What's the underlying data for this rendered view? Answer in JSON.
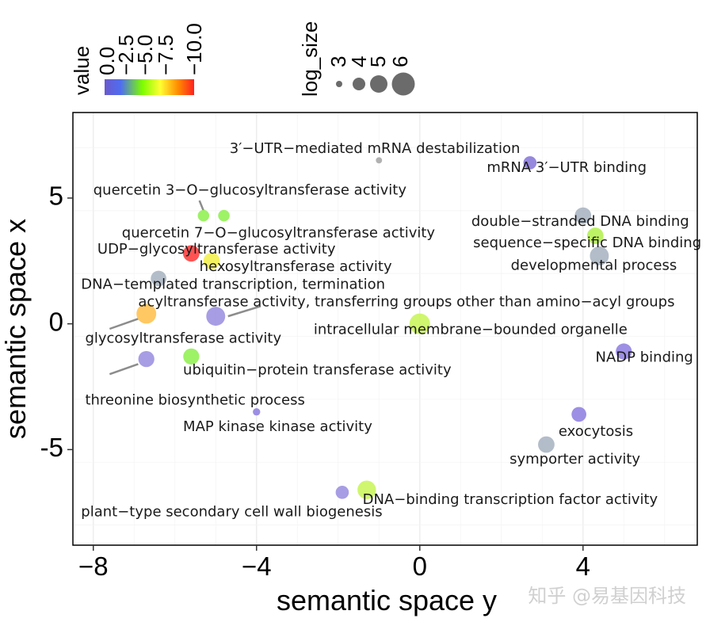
{
  "chart_data": {
    "type": "scatter",
    "xlabel": "semantic space y",
    "ylabel": "semantic space x",
    "xlim": [
      -8.5,
      6.8
    ],
    "ylim": [
      -8.8,
      8.4
    ],
    "x_ticks": [
      -8,
      -4,
      0,
      4
    ],
    "x_tick_labels": [
      "−8",
      "−4",
      "0",
      "4"
    ],
    "y_ticks": [
      -5,
      0,
      5
    ],
    "y_tick_labels": [
      "-5",
      "0",
      "5"
    ],
    "grid": true,
    "color_legend": {
      "title": "value",
      "labels": [
        "0.0",
        "−2.5",
        "−5.0",
        "−7.5",
        "−10.0"
      ],
      "colors": [
        "#6a5acd",
        "#4169e1",
        "#7cfc00",
        "#ffff33",
        "#ff8c00",
        "#ff2020"
      ]
    },
    "size_legend": {
      "title": "log_size",
      "labels": [
        "3",
        "4",
        "5",
        "6"
      ]
    },
    "points": [
      {
        "term": "3'-UTR-mediated mRNA destabilization",
        "x": -1.0,
        "y": 6.5,
        "log_size": 1.5,
        "color": "#a6a6a6"
      },
      {
        "term": "mRNA 3'-UTR binding",
        "x": 2.7,
        "y": 6.4,
        "log_size": 3.2,
        "color": "#8878d8"
      },
      {
        "term": "quercetin 3-O-glucosyltransferase activity",
        "x": -5.3,
        "y": 4.3,
        "log_size": 2.8,
        "color": "#90f050"
      },
      {
        "term": "quercetin 7-O-glucosyltransferase activity",
        "x": -4.8,
        "y": 4.3,
        "log_size": 2.8,
        "color": "#90f050"
      },
      {
        "term": "double-stranded DNA binding",
        "x": 4.0,
        "y": 4.3,
        "log_size": 4.0,
        "color": "#a9b4c2"
      },
      {
        "term": "sequence-specific DNA binding",
        "x": 4.3,
        "y": 3.5,
        "log_size": 4.0,
        "color": "#b4f050"
      },
      {
        "term": "developmental process",
        "x": 4.4,
        "y": 2.7,
        "log_size": 4.6,
        "color": "#a9b4c2"
      },
      {
        "term": "UDP-glycosyltransferase activity",
        "x": -5.6,
        "y": 2.8,
        "log_size": 4.0,
        "color": "#ff3b3b"
      },
      {
        "term": "hexosyltransferase activity",
        "x": -5.1,
        "y": 2.5,
        "log_size": 4.0,
        "color": "#f2f04a"
      },
      {
        "term": "DNA-templated transcription, termination",
        "x": -6.4,
        "y": 1.8,
        "log_size": 3.8,
        "color": "#a9b4c2"
      },
      {
        "term": "acyltransferase activity, transferring groups other than amino-acyl groups",
        "x": -5.0,
        "y": 0.3,
        "log_size": 4.6,
        "color": "#9b8fe0"
      },
      {
        "term": "glycosyltransferase activity",
        "x": -6.7,
        "y": 0.4,
        "log_size": 4.8,
        "color": "#ffc04d"
      },
      {
        "term": "intracellular membrane-bounded organelle",
        "x": 0.0,
        "y": 0.0,
        "log_size": 5.0,
        "color": "#c8f55a"
      },
      {
        "term": "NADP binding",
        "x": 5.0,
        "y": -1.1,
        "log_size": 3.9,
        "color": "#8f80e0"
      },
      {
        "term": "ubiquitin-protein transferase activity",
        "x": -5.6,
        "y": -1.3,
        "log_size": 3.9,
        "color": "#90f050"
      },
      {
        "term": "threonine biosynthetic process",
        "x": -6.7,
        "y": -1.4,
        "log_size": 3.9,
        "color": "#9b8fe0"
      },
      {
        "term": "MAP kinase kinase activity",
        "x": -4.0,
        "y": -3.5,
        "log_size": 1.8,
        "color": "#8f80e0"
      },
      {
        "term": "exocytosis",
        "x": 3.9,
        "y": -3.6,
        "log_size": 3.6,
        "color": "#8f80e0"
      },
      {
        "term": "symporter activity",
        "x": 3.1,
        "y": -4.8,
        "log_size": 4.0,
        "color": "#a9b4c2"
      },
      {
        "term": "DNA-binding transcription factor activity",
        "x": -1.3,
        "y": -6.6,
        "log_size": 4.5,
        "color": "#c8f55a"
      },
      {
        "term": "plant-type secondary cell wall biogenesis",
        "x": -1.9,
        "y": -6.7,
        "log_size": 3.2,
        "color": "#9b8fe0"
      }
    ]
  },
  "labels": [
    {
      "text": "3′−UTR−mediated mRNA destabilization",
      "x": -1.1,
      "y": 6.95,
      "anchor": "middle"
    },
    {
      "text": "mRNA 3′−UTR binding",
      "x": 3.6,
      "y": 6.2,
      "anchor": "middle"
    },
    {
      "text": "quercetin 3−O−glucosyltransferase activity",
      "x": -8.0,
      "y": 5.3,
      "anchor": "start"
    },
    {
      "text": "quercetin 7−O−glucosyltransferase activity",
      "x": -7.3,
      "y": 3.6,
      "anchor": "start"
    },
    {
      "text": "UDP−glycosyltransferase activity",
      "x": -7.9,
      "y": 2.95,
      "anchor": "start"
    },
    {
      "text": "hexosyltransferase activity",
      "x": -5.4,
      "y": 2.25,
      "anchor": "start"
    },
    {
      "text": "DNA−templated transcription, termination",
      "x": -8.3,
      "y": 1.55,
      "anchor": "start"
    },
    {
      "text": "acyltransferase activity, transferring groups other than amino−acyl groups",
      "x": -6.9,
      "y": 0.85,
      "anchor": "start"
    },
    {
      "text": "glycosyltransferase activity",
      "x": -8.2,
      "y": -0.6,
      "anchor": "start"
    },
    {
      "text": "ubiquitin−protein transferase activity",
      "x": -5.8,
      "y": -1.85,
      "anchor": "start"
    },
    {
      "text": "threonine biosynthetic process",
      "x": -8.2,
      "y": -3.05,
      "anchor": "start"
    },
    {
      "text": "MAP kinase kinase activity",
      "x": -5.8,
      "y": -4.1,
      "anchor": "start"
    },
    {
      "text": "double−stranded DNA binding",
      "x": 6.6,
      "y": 4.05,
      "anchor": "end"
    },
    {
      "text": "sequence−specific DNA binding",
      "x": 6.9,
      "y": 3.2,
      "anchor": "end"
    },
    {
      "text": "developmental process",
      "x": 6.3,
      "y": 2.3,
      "anchor": "end"
    },
    {
      "text": "intracellular membrane−bounded organelle",
      "x": -2.6,
      "y": -0.25,
      "anchor": "start"
    },
    {
      "text": "NADP binding",
      "x": 6.7,
      "y": -1.35,
      "anchor": "end"
    },
    {
      "text": "exocytosis",
      "x": 3.4,
      "y": -4.3,
      "anchor": "start"
    },
    {
      "text": "symporter activity",
      "x": 2.2,
      "y": -5.4,
      "anchor": "start"
    },
    {
      "text": "DNA−binding transcription factor activity",
      "x": -1.4,
      "y": -7.0,
      "anchor": "start"
    },
    {
      "text": "plant−type secondary cell wall biogenesis",
      "x": -8.3,
      "y": -7.5,
      "anchor": "start"
    }
  ],
  "leader_lines": [
    {
      "from": [
        -5.4,
        4.9
      ],
      "to": [
        -5.3,
        4.5
      ]
    },
    {
      "from": [
        -7.6,
        -0.2
      ],
      "to": [
        -6.9,
        0.2
      ]
    },
    {
      "from": [
        -4.7,
        0.3
      ],
      "to": [
        -3.9,
        0.7
      ]
    },
    {
      "from": [
        -7.6,
        -2.0
      ],
      "to": [
        -6.9,
        -1.6
      ]
    }
  ],
  "watermark": "知乎 @易基因科技"
}
